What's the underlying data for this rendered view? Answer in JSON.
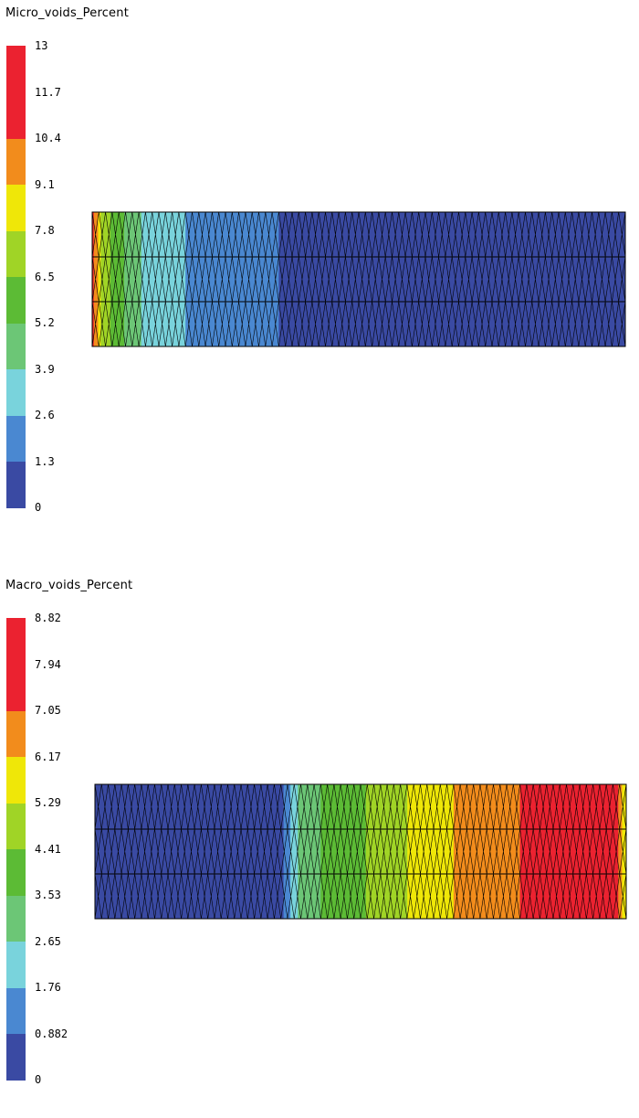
{
  "palette": [
    "#3a4aa3",
    "#4a88d1",
    "#79d3dc",
    "#6cc676",
    "#5cbb35",
    "#a0d426",
    "#efe708",
    "#f28c1c",
    "#eb2230",
    "#eb2230"
  ],
  "plots": [
    {
      "title": "Micro_voids_Percent",
      "tick_labels": [
        "0",
        "1.3",
        "2.6",
        "3.9",
        "5.2",
        "6.5",
        "7.8",
        "9.1",
        "10.4",
        "11.7",
        "13"
      ],
      "mesh": {
        "rows": 3,
        "cols": 40
      },
      "field": [
        {
          "from": 0.0,
          "to": 0.003,
          "band": 8
        },
        {
          "from": 0.003,
          "to": 0.011,
          "band": 7
        },
        {
          "from": 0.011,
          "to": 0.016,
          "band": 6
        },
        {
          "from": 0.016,
          "to": 0.034,
          "band": 5
        },
        {
          "from": 0.034,
          "to": 0.06,
          "band": 4
        },
        {
          "from": 0.06,
          "to": 0.092,
          "band": 3
        },
        {
          "from": 0.092,
          "to": 0.175,
          "band": 2
        },
        {
          "from": 0.175,
          "to": 0.35,
          "band": 1
        },
        {
          "from": 0.35,
          "to": 1.0,
          "band": 0
        }
      ]
    },
    {
      "title": "Macro_voids_Percent",
      "tick_labels": [
        "0",
        "0.882",
        "1.76",
        "2.65",
        "3.53",
        "4.41",
        "5.29",
        "6.17",
        "7.05",
        "7.94",
        "8.82"
      ],
      "mesh": {
        "rows": 3,
        "cols": 40
      },
      "field": [
        {
          "from": 0.0,
          "to": 0.355,
          "band": 0
        },
        {
          "from": 0.355,
          "to": 0.368,
          "band": 1
        },
        {
          "from": 0.368,
          "to": 0.382,
          "band": 2
        },
        {
          "from": 0.382,
          "to": 0.425,
          "band": 3
        },
        {
          "from": 0.425,
          "to": 0.51,
          "band": 4
        },
        {
          "from": 0.51,
          "to": 0.588,
          "band": 5
        },
        {
          "from": 0.588,
          "to": 0.675,
          "band": 6
        },
        {
          "from": 0.675,
          "to": 0.8,
          "band": 7
        },
        {
          "from": 0.8,
          "to": 0.985,
          "band": 8
        },
        {
          "from": 0.985,
          "to": 0.992,
          "band": 7
        },
        {
          "from": 0.992,
          "to": 1.0,
          "band": 6
        }
      ]
    }
  ],
  "chart_data": [
    {
      "type": "heatmap",
      "title": "Micro_voids_Percent",
      "colorbar_min": 0,
      "colorbar_max": 13,
      "colorbar_ticks": [
        0,
        1.3,
        2.6,
        3.9,
        5.2,
        6.5,
        7.8,
        9.1,
        10.4,
        11.7,
        13
      ],
      "trend": "maximum (~12-13) at left edge, decreasing to 0 beyond ~35% of length",
      "profile_along_x": [
        {
          "x": 0.0,
          "value": 12.5
        },
        {
          "x": 0.01,
          "value": 10.0
        },
        {
          "x": 0.02,
          "value": 7.5
        },
        {
          "x": 0.05,
          "value": 5.5
        },
        {
          "x": 0.08,
          "value": 4.5
        },
        {
          "x": 0.15,
          "value": 3.2
        },
        {
          "x": 0.3,
          "value": 1.5
        },
        {
          "x": 0.4,
          "value": 0.5
        },
        {
          "x": 1.0,
          "value": 0.3
        }
      ]
    },
    {
      "type": "heatmap",
      "title": "Macro_voids_Percent",
      "colorbar_min": 0,
      "colorbar_max": 8.82,
      "colorbar_ticks": [
        0,
        0.882,
        1.76,
        2.65,
        3.53,
        4.41,
        5.29,
        6.17,
        7.05,
        7.94,
        8.82
      ],
      "trend": "0 over left ~35%, rising to ~8.3 near the right end, dropping at the right edge",
      "profile_along_x": [
        {
          "x": 0.0,
          "value": 0.4
        },
        {
          "x": 0.35,
          "value": 0.5
        },
        {
          "x": 0.37,
          "value": 1.3
        },
        {
          "x": 0.4,
          "value": 3.0
        },
        {
          "x": 0.47,
          "value": 4.0
        },
        {
          "x": 0.55,
          "value": 4.9
        },
        {
          "x": 0.63,
          "value": 5.8
        },
        {
          "x": 0.74,
          "value": 7.5
        },
        {
          "x": 0.9,
          "value": 8.3
        },
        {
          "x": 0.99,
          "value": 7.3
        },
        {
          "x": 1.0,
          "value": 5.9
        }
      ]
    }
  ]
}
